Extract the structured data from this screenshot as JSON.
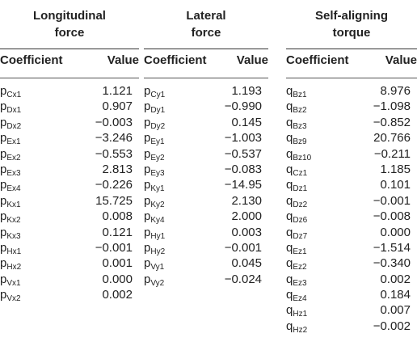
{
  "groups": [
    {
      "title": "Longitudinal\nforce",
      "col1": "Coefficient",
      "col2": "Value",
      "rows": [
        {
          "base": "p",
          "sub": "Cx1",
          "value": "1.121"
        },
        {
          "base": "p",
          "sub": "Dx1",
          "value": "0.907"
        },
        {
          "base": "p",
          "sub": "Dx2",
          "value": "−0.003"
        },
        {
          "base": "p",
          "sub": "Ex1",
          "value": "−3.246"
        },
        {
          "base": "p",
          "sub": "Ex2",
          "value": "−0.553"
        },
        {
          "base": "p",
          "sub": "Ex3",
          "value": "2.813"
        },
        {
          "base": "p",
          "sub": "Ex4",
          "value": "−0.226"
        },
        {
          "base": "p",
          "sub": "Kx1",
          "value": "15.725"
        },
        {
          "base": "p",
          "sub": "Kx2",
          "value": "0.008"
        },
        {
          "base": "p",
          "sub": "Kx3",
          "value": "0.121"
        },
        {
          "base": "p",
          "sub": "Hx1",
          "value": "−0.001"
        },
        {
          "base": "p",
          "sub": "Hx2",
          "value": "0.001"
        },
        {
          "base": "p",
          "sub": "Vx1",
          "value": "0.000"
        },
        {
          "base": "p",
          "sub": "Vx2",
          "value": "0.002"
        }
      ]
    },
    {
      "title": "Lateral\nforce",
      "col1": "Coefficient",
      "col2": "Value",
      "rows": [
        {
          "base": "p",
          "sub": "Cy1",
          "value": "1.193"
        },
        {
          "base": "p",
          "sub": "Dy1",
          "value": "−0.990"
        },
        {
          "base": "p",
          "sub": "Dy2",
          "value": "0.145"
        },
        {
          "base": "p",
          "sub": "Ey1",
          "value": "−1.003"
        },
        {
          "base": "p",
          "sub": "Ey2",
          "value": "−0.537"
        },
        {
          "base": "p",
          "sub": "Ey3",
          "value": "−0.083"
        },
        {
          "base": "p",
          "sub": "Ky1",
          "value": "−14.95"
        },
        {
          "base": "p",
          "sub": "Ky2",
          "value": "2.130"
        },
        {
          "base": "p",
          "sub": "Ky4",
          "value": "2.000"
        },
        {
          "base": "p",
          "sub": "Hy1",
          "value": "0.003"
        },
        {
          "base": "p",
          "sub": "Hy2",
          "value": "−0.001"
        },
        {
          "base": "p",
          "sub": "Vy1",
          "value": "0.045"
        },
        {
          "base": "p",
          "sub": "Vy2",
          "value": "−0.024"
        }
      ]
    },
    {
      "title": "Self-aligning\ntorque",
      "col1": "Coefficient",
      "col2": "Value",
      "rows": [
        {
          "base": "q",
          "sub": "Bz1",
          "value": "8.976"
        },
        {
          "base": "q",
          "sub": "Bz2",
          "value": "−1.098"
        },
        {
          "base": "q",
          "sub": "Bz3",
          "value": "−0.852"
        },
        {
          "base": "q",
          "sub": "Bz9",
          "value": "20.766"
        },
        {
          "base": "q",
          "sub": "Bz10",
          "value": "−0.211"
        },
        {
          "base": "q",
          "sub": "Cz1",
          "value": "1.185"
        },
        {
          "base": "q",
          "sub": "Dz1",
          "value": "0.101"
        },
        {
          "base": "q",
          "sub": "Dz2",
          "value": "−0.001"
        },
        {
          "base": "q",
          "sub": "Dz6",
          "value": "−0.008"
        },
        {
          "base": "q",
          "sub": "Dz7",
          "value": "0.000"
        },
        {
          "base": "q",
          "sub": "Ez1",
          "value": "−1.514"
        },
        {
          "base": "q",
          "sub": "Ez2",
          "value": "−0.340"
        },
        {
          "base": "q",
          "sub": "Ez3",
          "value": "0.002"
        },
        {
          "base": "q",
          "sub": "Ez4",
          "value": "0.184"
        },
        {
          "base": "q",
          "sub": "Hz1",
          "value": "0.007"
        },
        {
          "base": "q",
          "sub": "Hz2",
          "value": "−0.002"
        }
      ]
    }
  ]
}
